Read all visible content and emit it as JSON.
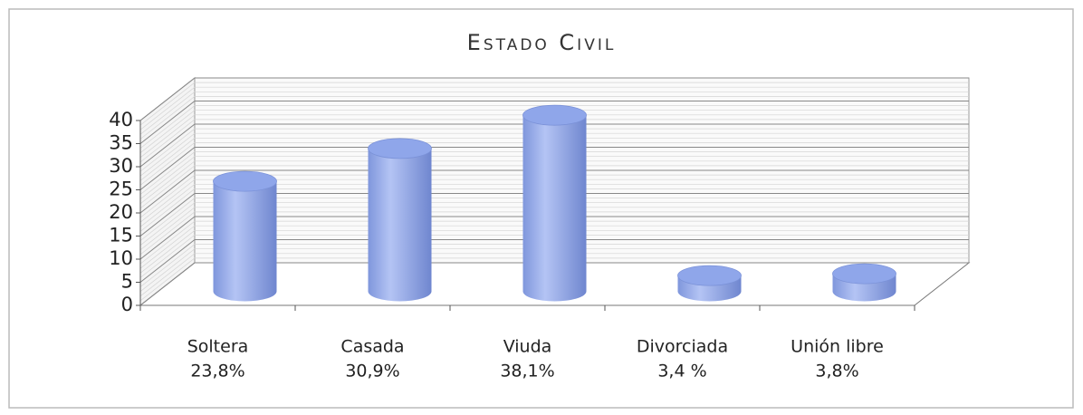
{
  "chart_data": {
    "type": "bar",
    "title": "Estado Civil",
    "categories": [
      "Soltera",
      "Casada",
      "Viuda",
      "Divorciada",
      "Unión libre"
    ],
    "values": [
      23.8,
      30.9,
      38.1,
      3.4,
      3.8
    ],
    "value_labels": [
      "23,8%",
      "30,9%",
      "38,1%",
      "3,4 %",
      "3,8%"
    ],
    "color": "#8fa6ea",
    "ylim": [
      0,
      40
    ],
    "yticks": [
      0,
      5,
      10,
      15,
      20,
      25,
      30,
      35,
      40
    ],
    "grid": true
  }
}
